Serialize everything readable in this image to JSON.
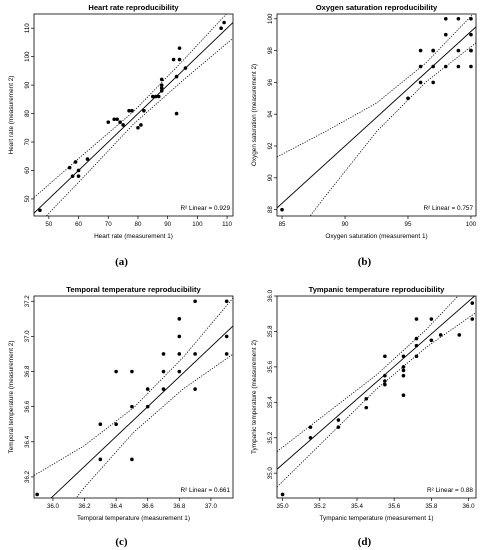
{
  "panels": [
    {
      "caption": "(a)",
      "chart_data": {
        "type": "scatter",
        "title": "Heart rate reproducibility",
        "xlabel": "Heart rate (measurement 1)",
        "ylabel": "Heart rate (measurement 2)",
        "xlim": [
          45,
          112
        ],
        "ylim": [
          44,
          115
        ],
        "xticks": [
          50,
          60,
          70,
          80,
          90,
          100,
          110
        ],
        "yticks": [
          50,
          60,
          70,
          80,
          90,
          100,
          110
        ],
        "xtick_labels": [
          "50",
          "60",
          "70",
          "80",
          "90",
          "100",
          "110"
        ],
        "ytick_labels": [
          "50",
          "60",
          "70",
          "80",
          "90",
          "100",
          "110"
        ],
        "r2_label": "R² Linear = 0.929",
        "fit": {
          "slope": 1.0,
          "intercept": 0.0
        },
        "ci_spread": [
          5.5,
          4.0,
          2.2,
          3.5,
          5.5
        ],
        "x": [
          47,
          57,
          58,
          59,
          60,
          60,
          63,
          70,
          72,
          73,
          74,
          75,
          77,
          78,
          80,
          81,
          82,
          85,
          86,
          87,
          88,
          88,
          88,
          88,
          92,
          93,
          93,
          94,
          94,
          96,
          108,
          109
        ],
        "y": [
          46,
          61,
          58,
          63,
          58,
          60,
          64,
          77,
          78,
          78,
          77,
          76,
          81,
          81,
          75,
          76,
          81,
          86,
          86,
          86,
          90,
          88,
          92,
          89,
          99,
          80,
          93,
          103,
          99,
          96,
          110,
          112
        ]
      }
    },
    {
      "caption": "(b)",
      "chart_data": {
        "type": "scatter",
        "title": "Oxygen saturation reproducibility",
        "xlabel": "Oxygen saturation (measurement 1)",
        "ylabel": "Oxygen saturation (measurement 2)",
        "xlim": [
          84.6,
          100.4
        ],
        "ylim": [
          87.6,
          100.3
        ],
        "xticks": [
          85,
          90,
          95,
          100
        ],
        "yticks": [
          88,
          90,
          92,
          94,
          96,
          98,
          100
        ],
        "xtick_labels": [
          "85",
          "90",
          "95",
          "100"
        ],
        "ytick_labels": [
          "88",
          "90",
          "92",
          "94",
          "96",
          "98",
          "100"
        ],
        "r2_label": "R² Linear = 0.757",
        "fit": {
          "slope": 0.72,
          "intercept": 27.2
        },
        "ci_spread": [
          3.2,
          2.0,
          0.9,
          0.6,
          1.0
        ],
        "x": [
          85,
          95,
          96,
          96,
          96,
          97,
          97,
          97,
          97,
          98,
          98,
          98,
          99,
          99,
          99,
          100,
          100,
          100,
          100,
          100
        ],
        "y": [
          88,
          95,
          96,
          97,
          98,
          96,
          97,
          98,
          98,
          97,
          99,
          100,
          97,
          98,
          100,
          97,
          98,
          98,
          99,
          100
        ]
      }
    },
    {
      "caption": "(c)",
      "chart_data": {
        "type": "scatter",
        "title": "Temporal temperature reproducibility",
        "xlabel": "Temporal temperature (measurement 1)",
        "ylabel": "Temporal temperature (measurement 2)",
        "xlim": [
          35.88,
          37.14
        ],
        "ylim": [
          36.08,
          37.23
        ],
        "xticks": [
          36.0,
          36.2,
          36.4,
          36.6,
          36.8,
          37.0
        ],
        "yticks": [
          36.2,
          36.4,
          36.6,
          36.8,
          37.0,
          37.2
        ],
        "xtick_labels": [
          "36.0",
          "36.2",
          "36.4",
          "36.6",
          "36.8",
          "37.0"
        ],
        "ytick_labels": [
          "36.2",
          "36.4",
          "36.6",
          "36.8",
          "37.0",
          "37.2"
        ],
        "r2_label": "R² Linear = 0.661",
        "fit": {
          "slope": 0.85,
          "intercept": 5.49
        },
        "ci_spread": [
          0.22,
          0.12,
          0.07,
          0.09,
          0.16
        ],
        "x": [
          35.9,
          36.3,
          36.3,
          36.4,
          36.4,
          36.5,
          36.5,
          36.5,
          36.6,
          36.6,
          36.7,
          36.7,
          36.7,
          36.8,
          36.8,
          36.8,
          36.8,
          36.9,
          36.9,
          36.9,
          37.1,
          37.1,
          37.1
        ],
        "y": [
          36.1,
          36.5,
          36.3,
          36.5,
          36.8,
          36.8,
          36.6,
          36.3,
          36.6,
          36.7,
          36.7,
          36.8,
          36.9,
          36.8,
          36.9,
          37.0,
          37.1,
          36.7,
          36.9,
          37.2,
          37.2,
          36.9,
          37.0
        ]
      }
    },
    {
      "caption": "(d)",
      "chart_data": {
        "type": "scatter",
        "title": "Tympanic temperature reproducibility",
        "xlabel": "Tympanic temperature (measurement 1)",
        "ylabel": "Tympanic temperature (measurement 2)",
        "xlim": [
          34.97,
          36.04
        ],
        "ylim": [
          34.86,
          36.0
        ],
        "xticks": [
          35.0,
          35.2,
          35.4,
          35.6,
          35.8,
          36.0
        ],
        "yticks": [
          35.0,
          35.2,
          35.4,
          35.6,
          35.8,
          36.0
        ],
        "xtick_labels": [
          "35.0",
          "35.2",
          "35.4",
          "35.6",
          "35.8",
          "36.0"
        ],
        "ytick_labels": [
          "35.0",
          "35.2",
          "35.4",
          "35.6",
          "35.8",
          "36.0"
        ],
        "r2_label": "R² Linear = 0.88",
        "fit": {
          "slope": 0.92,
          "intercept": 2.85
        },
        "ci_spread": [
          0.1,
          0.07,
          0.04,
          0.05,
          0.1
        ],
        "x": [
          35.0,
          35.15,
          35.15,
          35.3,
          35.3,
          35.45,
          35.45,
          35.55,
          35.55,
          35.55,
          35.55,
          35.65,
          35.65,
          35.65,
          35.65,
          35.65,
          35.72,
          35.72,
          35.72,
          35.72,
          35.8,
          35.8,
          35.85,
          35.95,
          36.02,
          36.02
        ],
        "y": [
          34.88,
          35.26,
          35.2,
          35.26,
          35.3,
          35.37,
          35.42,
          35.5,
          35.52,
          35.55,
          35.66,
          35.44,
          35.55,
          35.58,
          35.6,
          35.66,
          35.66,
          35.72,
          35.76,
          35.87,
          35.75,
          35.87,
          35.78,
          35.78,
          35.87,
          35.96
        ]
      }
    }
  ]
}
